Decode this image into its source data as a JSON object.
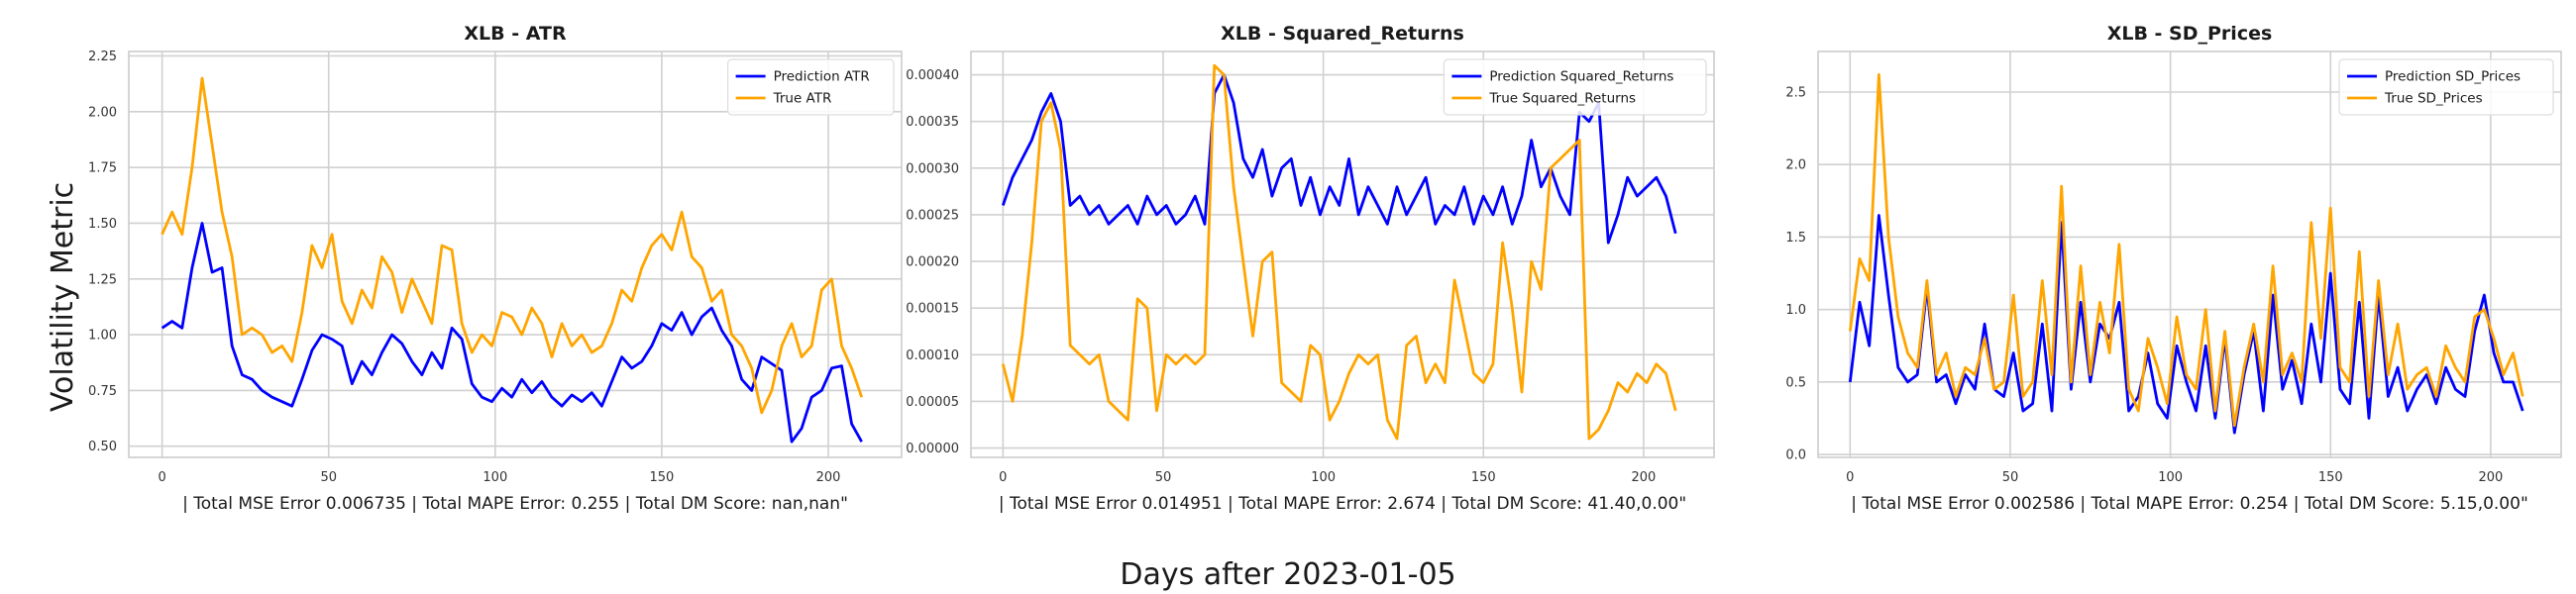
{
  "figure": {
    "ylabel": "Volatility Metric",
    "supxlabel": "Days after 2023-01-05"
  },
  "chart_data": [
    {
      "type": "line",
      "title": "XLB - ATR",
      "xlabel": "| Total MSE Error 0.006735 | Total MAPE Error: 0.255 | Total DM Score: nan,nan\"",
      "ylabel": "",
      "xlim": [
        -10,
        222
      ],
      "ylim": [
        0.45,
        2.27
      ],
      "x_ticks": [
        0,
        50,
        100,
        150,
        200
      ],
      "y_ticks": [
        0.5,
        0.75,
        1.0,
        1.25,
        1.5,
        1.75,
        2.0,
        2.25
      ],
      "y_tick_labels": [
        "0.50",
        "0.75",
        "1.00",
        "1.25",
        "1.50",
        "1.75",
        "2.00",
        "2.25"
      ],
      "grid": true,
      "legend_position": "top-right",
      "series": [
        {
          "name": "Prediction ATR",
          "color": "#0000ff",
          "x": [
            0,
            3,
            6,
            9,
            12,
            15,
            18,
            21,
            24,
            27,
            30,
            33,
            36,
            39,
            42,
            45,
            48,
            51,
            54,
            57,
            60,
            63,
            66,
            69,
            72,
            75,
            78,
            81,
            84,
            87,
            90,
            93,
            96,
            99,
            102,
            105,
            108,
            111,
            114,
            117,
            120,
            123,
            126,
            129,
            132,
            135,
            138,
            141,
            144,
            147,
            150,
            153,
            156,
            159,
            162,
            165,
            168,
            171,
            174,
            177,
            180,
            183,
            186,
            189,
            192,
            195,
            198,
            201,
            204,
            207,
            210
          ],
          "y": [
            1.03,
            1.06,
            1.03,
            1.3,
            1.5,
            1.28,
            1.3,
            0.95,
            0.82,
            0.8,
            0.75,
            0.72,
            0.7,
            0.68,
            0.8,
            0.93,
            1.0,
            0.98,
            0.95,
            0.78,
            0.88,
            0.82,
            0.92,
            1.0,
            0.96,
            0.88,
            0.82,
            0.92,
            0.85,
            1.03,
            0.98,
            0.78,
            0.72,
            0.7,
            0.76,
            0.72,
            0.8,
            0.74,
            0.79,
            0.72,
            0.68,
            0.73,
            0.7,
            0.74,
            0.68,
            0.79,
            0.9,
            0.85,
            0.88,
            0.95,
            1.05,
            1.02,
            1.1,
            1.0,
            1.08,
            1.12,
            1.02,
            0.95,
            0.8,
            0.75,
            0.9,
            0.87,
            0.84,
            0.52,
            0.58,
            0.72,
            0.75,
            0.85,
            0.86,
            0.6,
            0.52
          ]
        },
        {
          "name": "True ATR",
          "color": "#ffa500",
          "x": [
            0,
            3,
            6,
            9,
            12,
            15,
            18,
            21,
            24,
            27,
            30,
            33,
            36,
            39,
            42,
            45,
            48,
            51,
            54,
            57,
            60,
            63,
            66,
            69,
            72,
            75,
            78,
            81,
            84,
            87,
            90,
            93,
            96,
            99,
            102,
            105,
            108,
            111,
            114,
            117,
            120,
            123,
            126,
            129,
            132,
            135,
            138,
            141,
            144,
            147,
            150,
            153,
            156,
            159,
            162,
            165,
            168,
            171,
            174,
            177,
            180,
            183,
            186,
            189,
            192,
            195,
            198,
            201,
            204,
            207,
            210
          ],
          "y": [
            1.45,
            1.55,
            1.45,
            1.75,
            2.15,
            1.85,
            1.55,
            1.35,
            1.0,
            1.03,
            1.0,
            0.92,
            0.95,
            0.88,
            1.1,
            1.4,
            1.3,
            1.45,
            1.15,
            1.05,
            1.2,
            1.12,
            1.35,
            1.28,
            1.1,
            1.25,
            1.15,
            1.05,
            1.4,
            1.38,
            1.05,
            0.92,
            1.0,
            0.95,
            1.1,
            1.08,
            1.0,
            1.12,
            1.05,
            0.9,
            1.05,
            0.95,
            1.0,
            0.92,
            0.95,
            1.05,
            1.2,
            1.15,
            1.3,
            1.4,
            1.45,
            1.38,
            1.55,
            1.35,
            1.3,
            1.15,
            1.2,
            1.0,
            0.95,
            0.85,
            0.65,
            0.75,
            0.95,
            1.05,
            0.9,
            0.95,
            1.2,
            1.25,
            0.95,
            0.85,
            0.72
          ]
        }
      ]
    },
    {
      "type": "line",
      "title": "XLB - Squared_Returns",
      "xlabel": "| Total MSE Error 0.014951 | Total MAPE Error: 2.674 | Total DM Score: 41.40,0.00\"",
      "ylabel": "",
      "xlim": [
        -10,
        222
      ],
      "ylim": [
        -1e-05,
        0.000425
      ],
      "x_ticks": [
        0,
        50,
        100,
        150,
        200
      ],
      "y_ticks": [
        0.0,
        5e-05,
        0.0001,
        0.00015,
        0.0002,
        0.00025,
        0.0003,
        0.00035,
        0.0004
      ],
      "y_tick_labels": [
        "0.00000",
        "0.00005",
        "0.00010",
        "0.00015",
        "0.00020",
        "0.00025",
        "0.00030",
        "0.00035",
        "0.00040"
      ],
      "grid": true,
      "legend_position": "top-right",
      "series": [
        {
          "name": "Prediction Squared_Returns",
          "color": "#0000ff",
          "x": [
            0,
            3,
            6,
            9,
            12,
            15,
            18,
            21,
            24,
            27,
            30,
            33,
            36,
            39,
            42,
            45,
            48,
            51,
            54,
            57,
            60,
            63,
            66,
            69,
            72,
            75,
            78,
            81,
            84,
            87,
            90,
            93,
            96,
            99,
            102,
            105,
            108,
            111,
            114,
            117,
            120,
            123,
            126,
            129,
            132,
            135,
            138,
            141,
            144,
            147,
            150,
            153,
            156,
            159,
            162,
            165,
            168,
            171,
            174,
            177,
            180,
            183,
            186,
            189,
            192,
            195,
            198,
            201,
            204,
            207,
            210
          ],
          "y": [
            0.00026,
            0.00029,
            0.00031,
            0.00033,
            0.00036,
            0.00038,
            0.00035,
            0.00026,
            0.00027,
            0.00025,
            0.00026,
            0.00024,
            0.00025,
            0.00026,
            0.00024,
            0.00027,
            0.00025,
            0.00026,
            0.00024,
            0.00025,
            0.00027,
            0.00024,
            0.00038,
            0.0004,
            0.00037,
            0.00031,
            0.00029,
            0.00032,
            0.00027,
            0.0003,
            0.00031,
            0.00026,
            0.00029,
            0.00025,
            0.00028,
            0.00026,
            0.00031,
            0.00025,
            0.00028,
            0.00026,
            0.00024,
            0.00028,
            0.00025,
            0.00027,
            0.00029,
            0.00024,
            0.00026,
            0.00025,
            0.00028,
            0.00024,
            0.00027,
            0.00025,
            0.00028,
            0.00024,
            0.00027,
            0.00033,
            0.00028,
            0.0003,
            0.00027,
            0.00025,
            0.00036,
            0.00035,
            0.00037,
            0.00022,
            0.00025,
            0.00029,
            0.00027,
            0.00028,
            0.00029,
            0.00027,
            0.00023
          ]
        },
        {
          "name": "True Squared_Returns",
          "color": "#ffa500",
          "x": [
            0,
            3,
            6,
            9,
            12,
            15,
            18,
            21,
            24,
            27,
            30,
            33,
            36,
            39,
            42,
            45,
            48,
            51,
            54,
            57,
            60,
            63,
            66,
            69,
            72,
            75,
            78,
            81,
            84,
            87,
            90,
            93,
            96,
            99,
            102,
            105,
            108,
            111,
            114,
            117,
            120,
            123,
            126,
            129,
            132,
            135,
            138,
            141,
            144,
            147,
            150,
            153,
            156,
            159,
            162,
            165,
            168,
            171,
            174,
            177,
            180,
            183,
            186,
            189,
            192,
            195,
            198,
            201,
            204,
            207,
            210
          ],
          "y": [
            9e-05,
            5e-05,
            0.00012,
            0.00022,
            0.00035,
            0.00037,
            0.00032,
            0.00011,
            0.0001,
            9e-05,
            0.0001,
            5e-05,
            4e-05,
            3e-05,
            0.00016,
            0.00015,
            4e-05,
            0.0001,
            9e-05,
            0.0001,
            9e-05,
            0.0001,
            0.00041,
            0.0004,
            0.00028,
            0.0002,
            0.00012,
            0.0002,
            0.00021,
            7e-05,
            6e-05,
            5e-05,
            0.00011,
            0.0001,
            3e-05,
            5e-05,
            8e-05,
            0.0001,
            9e-05,
            0.0001,
            3e-05,
            1e-05,
            0.00011,
            0.00012,
            7e-05,
            9e-05,
            7e-05,
            0.00018,
            0.00013,
            8e-05,
            7e-05,
            9e-05,
            0.00022,
            0.00015,
            6e-05,
            0.0002,
            0.00017,
            0.0003,
            0.00031,
            0.00032,
            0.00033,
            1e-05,
            2e-05,
            4e-05,
            7e-05,
            6e-05,
            8e-05,
            7e-05,
            9e-05,
            8e-05,
            4e-05
          ]
        }
      ]
    },
    {
      "type": "line",
      "title": "XLB - SD_Prices",
      "xlabel": "| Total MSE Error 0.002586 | Total MAPE Error: 0.254 | Total DM Score: 5.15,0.00\"",
      "ylabel": "",
      "xlim": [
        -10,
        222
      ],
      "ylim": [
        -0.02,
        2.78
      ],
      "x_ticks": [
        0,
        50,
        100,
        150,
        200
      ],
      "y_ticks": [
        0.0,
        0.5,
        1.0,
        1.5,
        2.0,
        2.5
      ],
      "y_tick_labels": [
        "0.0",
        "0.5",
        "1.0",
        "1.5",
        "2.0",
        "2.5"
      ],
      "grid": true,
      "legend_position": "top-right",
      "series": [
        {
          "name": "Prediction SD_Prices",
          "color": "#0000ff",
          "x": [
            0,
            3,
            6,
            9,
            12,
            15,
            18,
            21,
            24,
            27,
            30,
            33,
            36,
            39,
            42,
            45,
            48,
            51,
            54,
            57,
            60,
            63,
            66,
            69,
            72,
            75,
            78,
            81,
            84,
            87,
            90,
            93,
            96,
            99,
            102,
            105,
            108,
            111,
            114,
            117,
            120,
            123,
            126,
            129,
            132,
            135,
            138,
            141,
            144,
            147,
            150,
            153,
            156,
            159,
            162,
            165,
            168,
            171,
            174,
            177,
            180,
            183,
            186,
            189,
            192,
            195,
            198,
            201,
            204,
            207,
            210
          ],
          "y": [
            0.5,
            1.05,
            0.75,
            1.65,
            1.1,
            0.6,
            0.5,
            0.55,
            1.15,
            0.5,
            0.55,
            0.35,
            0.55,
            0.45,
            0.9,
            0.45,
            0.4,
            0.7,
            0.3,
            0.35,
            0.9,
            0.3,
            1.6,
            0.45,
            1.05,
            0.5,
            0.9,
            0.8,
            1.05,
            0.3,
            0.4,
            0.7,
            0.35,
            0.25,
            0.75,
            0.5,
            0.3,
            0.75,
            0.25,
            0.8,
            0.15,
            0.55,
            0.85,
            0.3,
            1.1,
            0.45,
            0.65,
            0.35,
            0.9,
            0.5,
            1.25,
            0.45,
            0.35,
            1.05,
            0.25,
            1.1,
            0.4,
            0.6,
            0.3,
            0.45,
            0.55,
            0.35,
            0.6,
            0.45,
            0.4,
            0.85,
            1.1,
            0.7,
            0.5,
            0.5,
            0.3
          ]
        },
        {
          "name": "True SD_Prices",
          "color": "#ffa500",
          "x": [
            0,
            3,
            6,
            9,
            12,
            15,
            18,
            21,
            24,
            27,
            30,
            33,
            36,
            39,
            42,
            45,
            48,
            51,
            54,
            57,
            60,
            63,
            66,
            69,
            72,
            75,
            78,
            81,
            84,
            87,
            90,
            93,
            96,
            99,
            102,
            105,
            108,
            111,
            114,
            117,
            120,
            123,
            126,
            129,
            132,
            135,
            138,
            141,
            144,
            147,
            150,
            153,
            156,
            159,
            162,
            165,
            168,
            171,
            174,
            177,
            180,
            183,
            186,
            189,
            192,
            195,
            198,
            201,
            204,
            207,
            210
          ],
          "y": [
            0.85,
            1.35,
            1.2,
            2.62,
            1.5,
            0.95,
            0.7,
            0.6,
            1.2,
            0.55,
            0.7,
            0.4,
            0.6,
            0.55,
            0.8,
            0.45,
            0.5,
            1.1,
            0.4,
            0.5,
            1.2,
            0.55,
            1.85,
            0.5,
            1.3,
            0.55,
            1.05,
            0.7,
            1.45,
            0.45,
            0.3,
            0.8,
            0.6,
            0.35,
            0.95,
            0.55,
            0.45,
            1.0,
            0.3,
            0.85,
            0.2,
            0.6,
            0.9,
            0.5,
            1.3,
            0.55,
            0.7,
            0.5,
            1.6,
            0.8,
            1.7,
            0.6,
            0.5,
            1.4,
            0.4,
            1.2,
            0.55,
            0.9,
            0.45,
            0.55,
            0.6,
            0.4,
            0.75,
            0.6,
            0.5,
            0.95,
            1.0,
            0.8,
            0.55,
            0.7,
            0.4
          ]
        }
      ]
    }
  ]
}
